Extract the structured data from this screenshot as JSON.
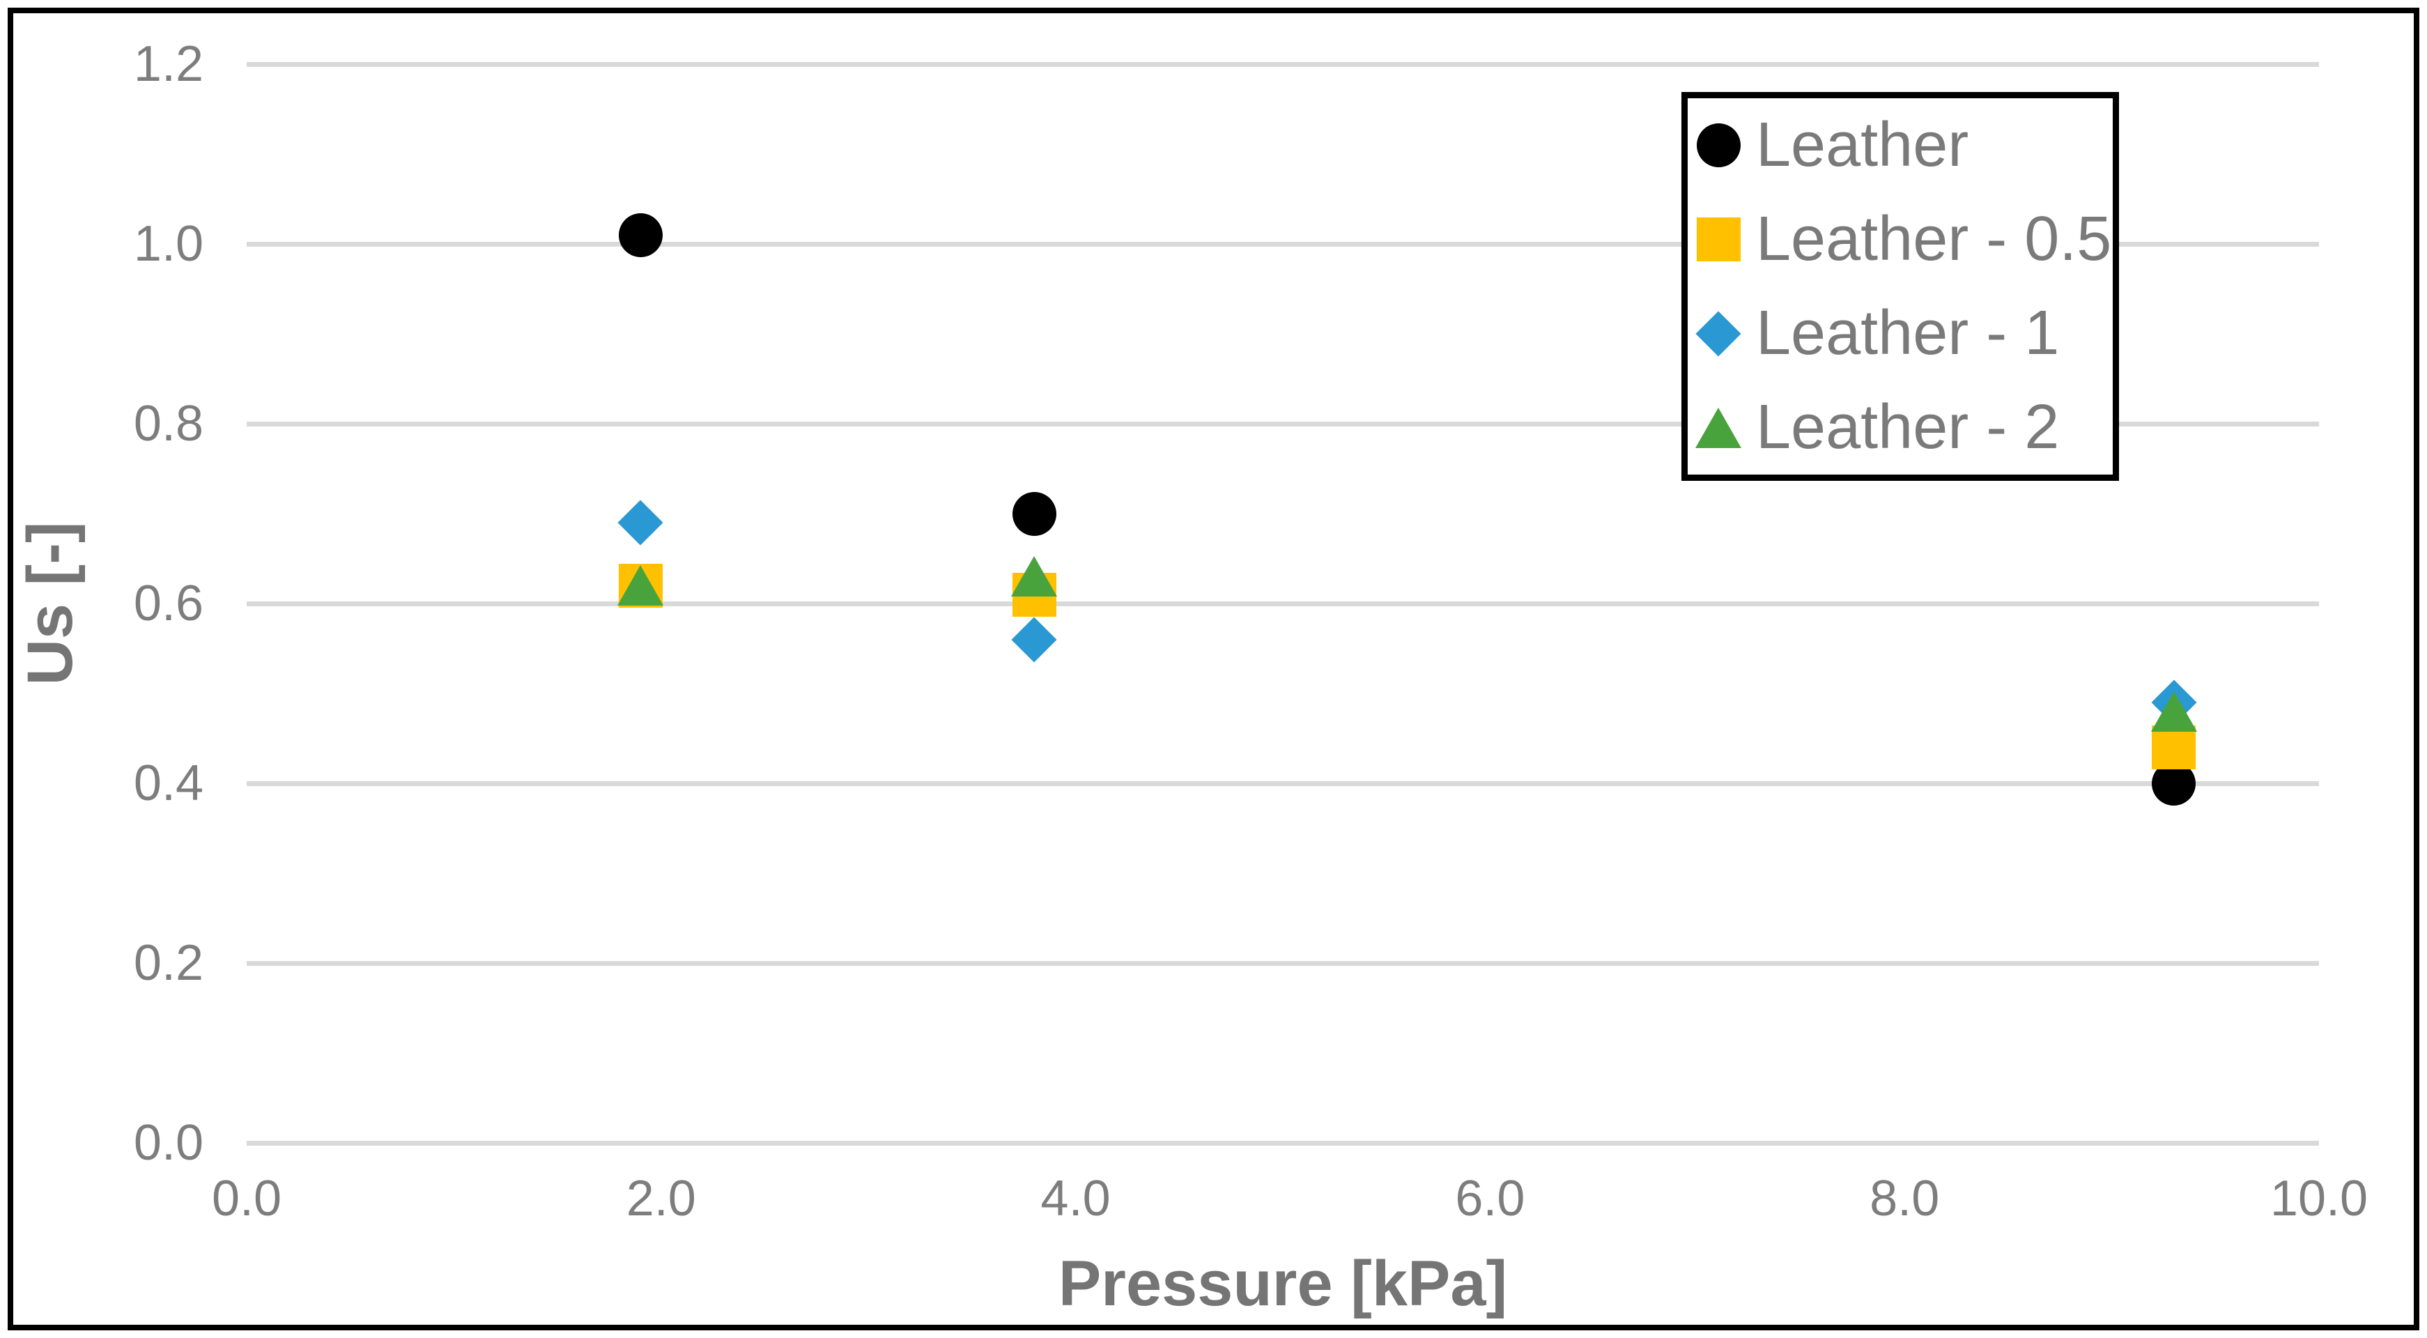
{
  "chart_data": {
    "type": "scatter",
    "title": "",
    "xlabel": "Pressure [kPa]",
    "ylabel": "Us [-]",
    "xlim": [
      0.0,
      10.0
    ],
    "ylim": [
      0.0,
      1.2
    ],
    "x_ticks": [
      0.0,
      2.0,
      4.0,
      6.0,
      8.0,
      10.0
    ],
    "y_ticks": [
      0.0,
      0.2,
      0.4,
      0.6,
      0.8,
      1.0,
      1.2
    ],
    "tick_decimals": 1,
    "grid": "horizontal-only",
    "legend_position": "inside-top-right",
    "series": [
      {
        "name": "Leather",
        "marker": "circle",
        "color": "#000000",
        "points": [
          [
            1.9,
            1.01
          ],
          [
            3.8,
            0.7
          ],
          [
            9.3,
            0.4
          ]
        ]
      },
      {
        "name": "Leather - 0.5",
        "marker": "square",
        "color": "#FFC000",
        "points": [
          [
            1.9,
            0.62
          ],
          [
            3.8,
            0.61
          ],
          [
            9.3,
            0.44
          ]
        ]
      },
      {
        "name": "Leather - 1",
        "marker": "diamond",
        "color": "#2A98D3",
        "points": [
          [
            1.9,
            0.69
          ],
          [
            3.8,
            0.56
          ],
          [
            9.3,
            0.49
          ]
        ]
      },
      {
        "name": "Leather - 2",
        "marker": "triangle",
        "color": "#49A33D",
        "points": [
          [
            1.9,
            0.62
          ],
          [
            3.8,
            0.63
          ],
          [
            9.3,
            0.48
          ]
        ]
      }
    ],
    "colors": {
      "background": "#FFFFFF",
      "chart_border": "#000000",
      "gridline": "#D9D9D9",
      "tick_text": "#7D7D7D",
      "axis_title_text": "#757575",
      "legend_text": "#7A7A7A",
      "legend_border": "#000000"
    }
  }
}
